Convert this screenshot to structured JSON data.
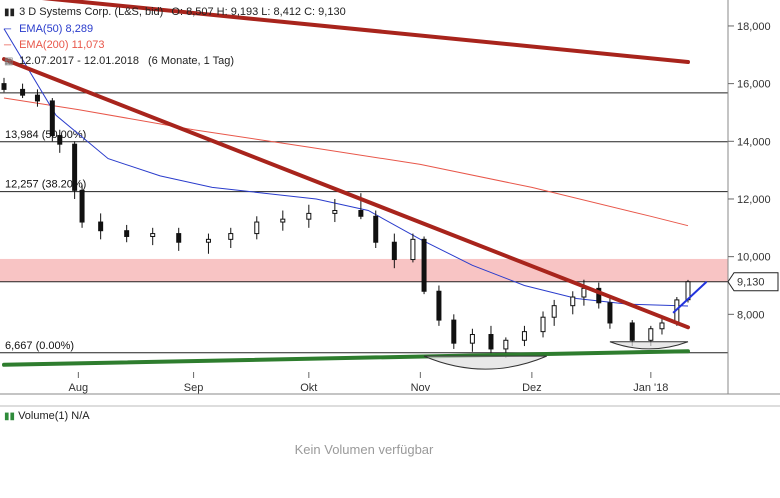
{
  "header": {
    "title": "3 D Systems Corp. (L&S, bid)",
    "ohlc": "O: 8,507  H: 9,193  L: 8,412  C: 9,130",
    "ema50_label": "EMA(50)",
    "ema50_value": "8,289",
    "ema200_label": "EMA(200)",
    "ema200_value": "11,073",
    "range": "12.07.2017 - 12.01.2018",
    "range_note": "(6 Monate, 1 Tag)"
  },
  "volume": {
    "label": "Volume(1)",
    "value": "N/A",
    "empty_message": "Kein Volumen verfügbar"
  },
  "colors": {
    "ema50": "#2a3ccc",
    "ema200": "#e8574a",
    "trend_red": "#a8241c",
    "trend_green": "#2e7d2e",
    "resistance_band": "#f8c4c4",
    "projection": "#2233dd",
    "candle": "#111111"
  },
  "chart_data": {
    "type": "candlestick",
    "title": "3 D Systems Corp. (L&S, bid)",
    "ylim": [
      6.0,
      18.9
    ],
    "y_ticks": [
      8.0,
      10.0,
      12.0,
      14.0,
      16.0,
      18.0
    ],
    "y_tick_labels": [
      "8,000",
      "10,000",
      "12,000",
      "14,000",
      "16,000",
      "18,000"
    ],
    "x_ticks": [
      {
        "label": "Aug",
        "date": "2017-08-01"
      },
      {
        "label": "Sep",
        "date": "2017-09-01"
      },
      {
        "label": "Okt",
        "date": "2017-10-02"
      },
      {
        "label": "Nov",
        "date": "2017-11-01"
      },
      {
        "label": "Dez",
        "date": "2017-12-01"
      },
      {
        "label": "Jan '18",
        "date": "2018-01-02"
      }
    ],
    "last_price_label": "9,130",
    "last_price": 9.13,
    "fib_levels": [
      {
        "label": "",
        "value": 15.68
      },
      {
        "label": "13,984 (50.00%)",
        "value": 13.984
      },
      {
        "label": "12,257 (38.20%)",
        "value": 12.257
      },
      {
        "label": "6,667 (0.00%)",
        "value": 6.667
      }
    ],
    "resistance_band": [
      9.13,
      9.92
    ],
    "trendlines": [
      {
        "color": "trend_red",
        "from": {
          "date": "2017-07-12",
          "value": 19.1
        },
        "to": {
          "date": "2018-01-12",
          "value": 16.75
        }
      },
      {
        "color": "trend_red",
        "from": {
          "date": "2017-07-12",
          "value": 16.85
        },
        "to": {
          "date": "2018-01-12",
          "value": 7.55
        }
      },
      {
        "color": "trend_green",
        "from": {
          "date": "2017-07-12",
          "value": 6.25
        },
        "to": {
          "date": "2018-01-12",
          "value": 6.72
        }
      }
    ],
    "projection": [
      {
        "date": "2018-01-08",
        "value": 8.05
      },
      {
        "date": "2018-01-17",
        "value": 9.13
      }
    ],
    "ema50": [
      {
        "date": "2017-07-12",
        "value": 17.9
      },
      {
        "date": "2017-07-26",
        "value": 14.9
      },
      {
        "date": "2017-08-09",
        "value": 13.4
      },
      {
        "date": "2017-08-23",
        "value": 12.8
      },
      {
        "date": "2017-09-06",
        "value": 12.4
      },
      {
        "date": "2017-09-20",
        "value": 12.2
      },
      {
        "date": "2017-10-04",
        "value": 12.0
      },
      {
        "date": "2017-10-18",
        "value": 11.6
      },
      {
        "date": "2017-11-01",
        "value": 10.6
      },
      {
        "date": "2017-11-15",
        "value": 9.7
      },
      {
        "date": "2017-11-29",
        "value": 9.0
      },
      {
        "date": "2017-12-13",
        "value": 8.55
      },
      {
        "date": "2017-12-27",
        "value": 8.35
      },
      {
        "date": "2018-01-12",
        "value": 8.29
      }
    ],
    "ema200": [
      {
        "date": "2017-07-12",
        "value": 15.5
      },
      {
        "date": "2017-08-01",
        "value": 15.1
      },
      {
        "date": "2017-09-01",
        "value": 14.4
      },
      {
        "date": "2017-10-02",
        "value": 13.8
      },
      {
        "date": "2017-11-01",
        "value": 13.2
      },
      {
        "date": "2017-12-01",
        "value": 12.4
      },
      {
        "date": "2018-01-02",
        "value": 11.4
      },
      {
        "date": "2018-01-12",
        "value": 11.073
      }
    ],
    "candles": [
      {
        "date": "2017-07-12",
        "open": 16.0,
        "high": 16.2,
        "low": 15.7,
        "close": 15.8
      },
      {
        "date": "2017-07-17",
        "open": 15.8,
        "high": 16.0,
        "low": 15.5,
        "close": 15.6
      },
      {
        "date": "2017-07-21",
        "open": 15.6,
        "high": 15.8,
        "low": 15.2,
        "close": 15.4
      },
      {
        "date": "2017-07-25",
        "open": 15.4,
        "high": 15.5,
        "low": 14.0,
        "close": 14.2
      },
      {
        "date": "2017-07-27",
        "open": 14.2,
        "high": 14.4,
        "low": 13.6,
        "close": 13.9
      },
      {
        "date": "2017-07-31",
        "open": 13.9,
        "high": 14.0,
        "low": 12.0,
        "close": 12.3
      },
      {
        "date": "2017-08-02",
        "open": 12.3,
        "high": 12.5,
        "low": 11.0,
        "close": 11.2
      },
      {
        "date": "2017-08-07",
        "open": 11.2,
        "high": 11.5,
        "low": 10.6,
        "close": 10.9
      },
      {
        "date": "2017-08-14",
        "open": 10.9,
        "high": 11.1,
        "low": 10.5,
        "close": 10.7
      },
      {
        "date": "2017-08-21",
        "open": 10.7,
        "high": 11.0,
        "low": 10.4,
        "close": 10.8
      },
      {
        "date": "2017-08-28",
        "open": 10.8,
        "high": 11.0,
        "low": 10.2,
        "close": 10.5
      },
      {
        "date": "2017-09-05",
        "open": 10.5,
        "high": 10.8,
        "low": 10.1,
        "close": 10.6
      },
      {
        "date": "2017-09-11",
        "open": 10.6,
        "high": 11.0,
        "low": 10.3,
        "close": 10.8
      },
      {
        "date": "2017-09-18",
        "open": 10.8,
        "high": 11.4,
        "low": 10.6,
        "close": 11.2
      },
      {
        "date": "2017-09-25",
        "open": 11.2,
        "high": 11.6,
        "low": 10.9,
        "close": 11.3
      },
      {
        "date": "2017-10-02",
        "open": 11.3,
        "high": 11.8,
        "low": 11.0,
        "close": 11.5
      },
      {
        "date": "2017-10-09",
        "open": 11.5,
        "high": 12.0,
        "low": 11.2,
        "close": 11.6
      },
      {
        "date": "2017-10-16",
        "open": 11.6,
        "high": 12.2,
        "low": 11.3,
        "close": 11.4
      },
      {
        "date": "2017-10-20",
        "open": 11.4,
        "high": 11.6,
        "low": 10.3,
        "close": 10.5
      },
      {
        "date": "2017-10-25",
        "open": 10.5,
        "high": 10.8,
        "low": 9.6,
        "close": 9.9
      },
      {
        "date": "2017-10-30",
        "open": 9.9,
        "high": 10.8,
        "low": 9.8,
        "close": 10.6
      },
      {
        "date": "2017-11-02",
        "open": 10.6,
        "high": 10.7,
        "low": 8.7,
        "close": 8.8
      },
      {
        "date": "2017-11-06",
        "open": 8.8,
        "high": 9.0,
        "low": 7.6,
        "close": 7.8
      },
      {
        "date": "2017-11-10",
        "open": 7.8,
        "high": 8.0,
        "low": 6.8,
        "close": 7.0
      },
      {
        "date": "2017-11-15",
        "open": 7.0,
        "high": 7.5,
        "low": 6.7,
        "close": 7.3
      },
      {
        "date": "2017-11-20",
        "open": 7.3,
        "high": 7.6,
        "low": 6.6,
        "close": 6.8
      },
      {
        "date": "2017-11-24",
        "open": 6.8,
        "high": 7.2,
        "low": 6.5,
        "close": 7.1
      },
      {
        "date": "2017-11-29",
        "open": 7.1,
        "high": 7.6,
        "low": 6.9,
        "close": 7.4
      },
      {
        "date": "2017-12-04",
        "open": 7.4,
        "high": 8.1,
        "low": 7.2,
        "close": 7.9
      },
      {
        "date": "2017-12-07",
        "open": 7.9,
        "high": 8.5,
        "low": 7.6,
        "close": 8.3
      },
      {
        "date": "2017-12-12",
        "open": 8.3,
        "high": 8.8,
        "low": 8.0,
        "close": 8.6
      },
      {
        "date": "2017-12-15",
        "open": 8.6,
        "high": 9.2,
        "low": 8.3,
        "close": 8.9
      },
      {
        "date": "2017-12-19",
        "open": 8.9,
        "high": 9.1,
        "low": 8.2,
        "close": 8.4
      },
      {
        "date": "2017-12-22",
        "open": 8.4,
        "high": 8.6,
        "low": 7.5,
        "close": 7.7
      },
      {
        "date": "2017-12-28",
        "open": 7.7,
        "high": 7.8,
        "low": 6.9,
        "close": 7.1
      },
      {
        "date": "2018-01-02",
        "open": 7.1,
        "high": 7.6,
        "low": 6.9,
        "close": 7.5
      },
      {
        "date": "2018-01-05",
        "open": 7.5,
        "high": 7.9,
        "low": 7.3,
        "close": 7.7
      },
      {
        "date": "2018-01-09",
        "open": 7.7,
        "high": 8.6,
        "low": 7.6,
        "close": 8.5
      },
      {
        "date": "2018-01-12",
        "open": 8.507,
        "high": 9.193,
        "low": 8.412,
        "close": 9.13
      }
    ]
  }
}
